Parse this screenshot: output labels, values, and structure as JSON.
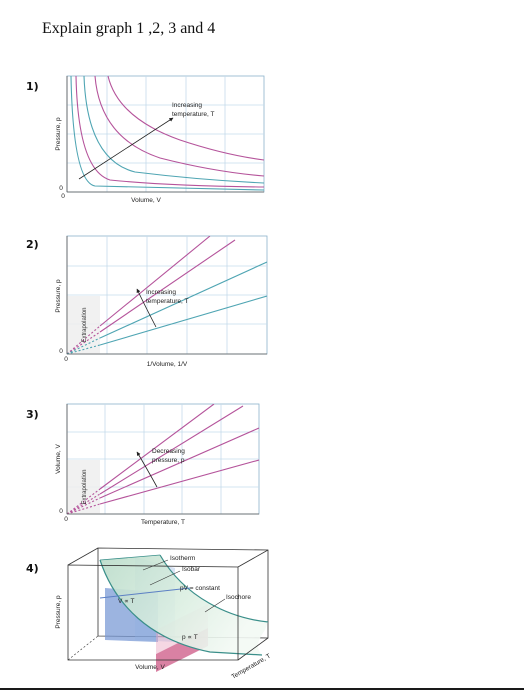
{
  "question": "Explain graph 1 ,2, 3 and 4",
  "colors": {
    "magenta": "#b5549b",
    "teal": "#4fa5b3",
    "grid": "#c5dbeb",
    "plane_blue": "#7b9bd6",
    "plane_pink": "#d26b93",
    "surface": "#cfe6d6"
  },
  "graph1": {
    "number": "1)",
    "xlabel": "Volume, V",
    "ylabel": "Pressure, p",
    "origin_x": "0",
    "origin_y": "0",
    "note_line1": "Increasing",
    "note_line2": "temperature, T"
  },
  "graph2": {
    "number": "2)",
    "xlabel": "1/Volume, 1/V",
    "ylabel": "Pressure, p",
    "origin_x": "0",
    "origin_y": "0",
    "extrapolation": "Extrapolation",
    "note_line1": "Increasing",
    "note_line2": "temperature, T"
  },
  "graph3": {
    "number": "3)",
    "xlabel": "Temperature, T",
    "ylabel": "Volume, V",
    "origin_x": "0",
    "origin_y": "0",
    "extrapolation": "Extrapolation",
    "note_line1": "Decreasing",
    "note_line2": "pressure, p"
  },
  "graph4": {
    "number": "4)",
    "isotherm": "Isotherm",
    "isobar": "Isobar",
    "pv_constant": "pV = constant",
    "isochore": "Isochore",
    "v_t": "V ∝ T",
    "p_t": "p ∝ T",
    "xlabel": "Volume, V",
    "ylabel": "Pressure, p",
    "zlabel": "Temperature, T"
  }
}
